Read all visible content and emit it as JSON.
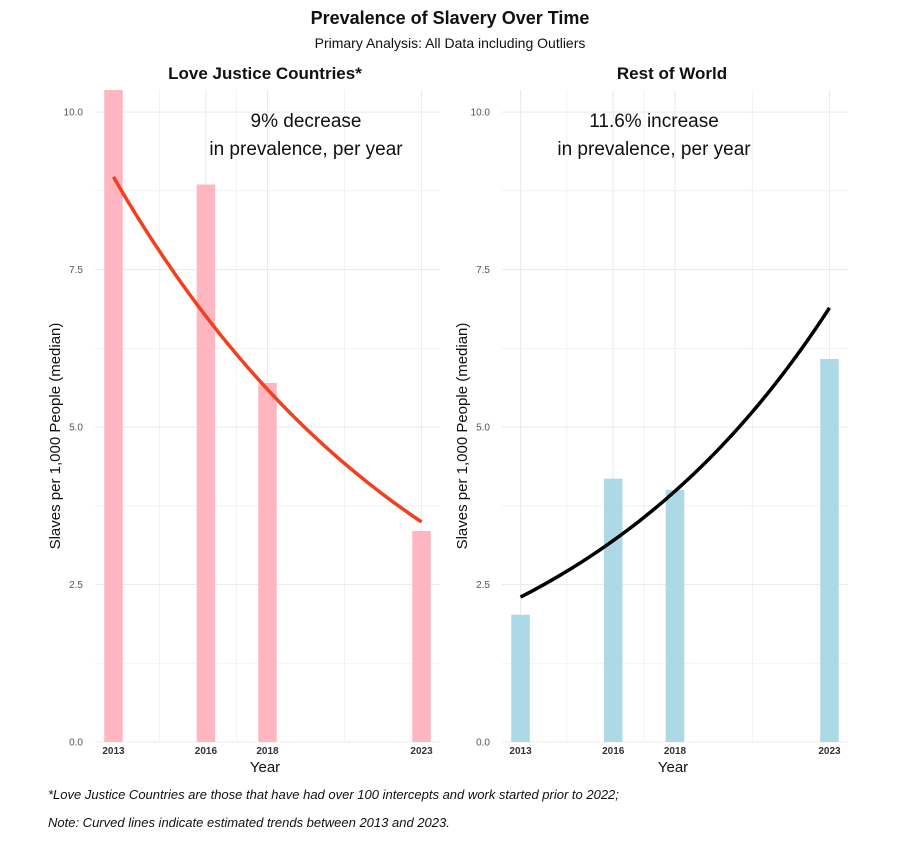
{
  "title": "Prevalence of Slavery Over Time",
  "subtitle": "Primary Analysis: All Data including Outliers",
  "footnotes": [
    "*Love Justice Countries are those that have had over 100 intercepts and work started prior to 2022;",
    "Note: Curved lines indicate estimated trends between 2013 and 2023."
  ],
  "colors": {
    "ljc_bar": "#FFB6C1",
    "ljc_trend": "#F2401E",
    "row_bar": "#ADD8E6",
    "row_trend": "#000000",
    "grid": "#ebebeb"
  },
  "chart_data": [
    {
      "type": "bar",
      "title": "Love Justice Countries*",
      "xlabel": "Year",
      "ylabel": "Slaves per 1,000 People (median)",
      "x": [
        2013,
        2016,
        2018,
        2023
      ],
      "xticks": [
        "2013",
        "2016",
        "2018",
        "2023"
      ],
      "values": [
        10.35,
        8.85,
        5.7,
        3.35
      ],
      "ylim": [
        0,
        10.35
      ],
      "yticks": [
        0,
        2.5,
        5,
        7.5,
        10
      ],
      "ytick_labels": [
        "0.0",
        "2.5",
        "5.0",
        "7.5",
        "10.0"
      ],
      "trend": {
        "type": "exponential",
        "x0": 2013,
        "y0": 8.97,
        "rate": -0.09,
        "x_range": [
          2013,
          2023
        ]
      },
      "annotation": [
        "9% decrease",
        "in prevalence, per year"
      ],
      "bar_color": "#FFB6C1",
      "line_color": "#F2401E",
      "grid": true
    },
    {
      "type": "bar",
      "title": "Rest of World",
      "xlabel": "Year",
      "ylabel": "Slaves per 1,000 People (median)",
      "x": [
        2013,
        2016,
        2018,
        2023
      ],
      "xticks": [
        "2013",
        "2016",
        "2018",
        "2023"
      ],
      "values": [
        2.02,
        4.18,
        4.0,
        6.08
      ],
      "ylim": [
        0,
        10.35
      ],
      "yticks": [
        0,
        2.5,
        5,
        7.5,
        10
      ],
      "ytick_labels": [
        "0.0",
        "2.5",
        "5.0",
        "7.5",
        "10.0"
      ],
      "trend": {
        "type": "exponential",
        "x0": 2013,
        "y0": 2.3,
        "rate": 0.116,
        "x_range": [
          2013,
          2023
        ]
      },
      "annotation": [
        "11.6% increase",
        "in prevalence, per year"
      ],
      "bar_color": "#ADD8E6",
      "line_color": "#000000",
      "grid": true
    }
  ]
}
